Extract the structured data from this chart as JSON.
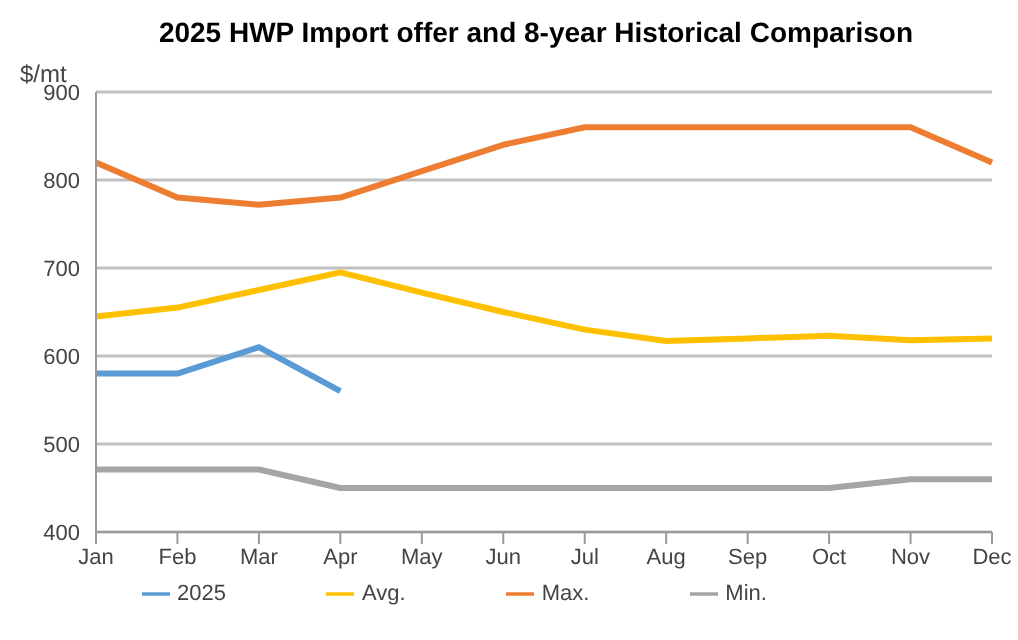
{
  "chart_data": {
    "type": "line",
    "title": "2025 HWP Import offer and 8-year Historical Comparison",
    "ylabel": "$/mt",
    "categories": [
      "Jan",
      "Feb",
      "Mar",
      "Apr",
      "May",
      "Jun",
      "Jul",
      "Aug",
      "Sep",
      "Oct",
      "Nov",
      "Dec"
    ],
    "series": [
      {
        "name": "2025",
        "color": "#5b9bd5",
        "values": [
          580,
          580,
          610,
          560,
          null,
          null,
          null,
          null,
          null,
          null,
          null,
          null
        ]
      },
      {
        "name": "Max.",
        "color": "#ed7d31",
        "values": [
          820,
          780,
          772,
          780,
          810,
          840,
          860,
          860,
          860,
          860,
          860,
          820
        ]
      },
      {
        "name": "Min.",
        "color": "#a5a5a5",
        "values": [
          471,
          471,
          471,
          450,
          450,
          450,
          450,
          450,
          450,
          450,
          460,
          460
        ]
      },
      {
        "name": "Avg.",
        "color": "#ffc000",
        "values": [
          645,
          655,
          675,
          695,
          672,
          650,
          630,
          617,
          620,
          623,
          618,
          620
        ]
      }
    ],
    "ylim": [
      400,
      900
    ],
    "yticks": [
      400,
      500,
      600,
      700,
      800,
      900
    ],
    "grid": "y",
    "legend": "bottom",
    "marker": "none",
    "line_style": "solid"
  }
}
